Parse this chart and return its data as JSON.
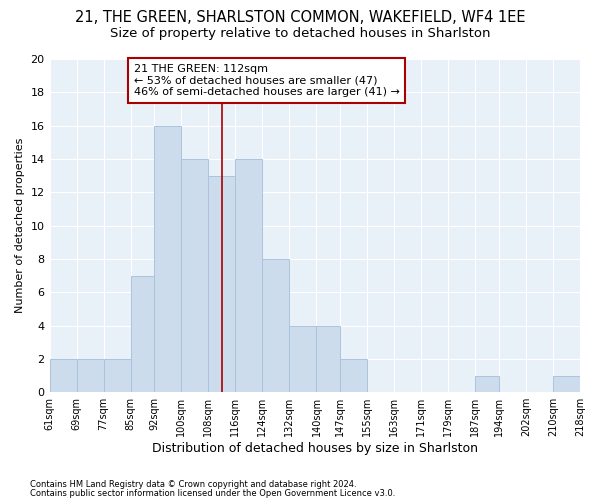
{
  "title": "21, THE GREEN, SHARLSTON COMMON, WAKEFIELD, WF4 1EE",
  "subtitle": "Size of property relative to detached houses in Sharlston",
  "xlabel": "Distribution of detached houses by size in Sharlston",
  "ylabel": "Number of detached properties",
  "footer_line1": "Contains HM Land Registry data © Crown copyright and database right 2024.",
  "footer_line2": "Contains public sector information licensed under the Open Government Licence v3.0.",
  "bin_edges": [
    61,
    69,
    77,
    85,
    92,
    100,
    108,
    116,
    124,
    132,
    140,
    147,
    155,
    163,
    171,
    179,
    187,
    194,
    202,
    210,
    218
  ],
  "bar_heights": [
    2,
    2,
    2,
    7,
    16,
    14,
    13,
    14,
    8,
    4,
    4,
    2,
    0,
    0,
    0,
    0,
    1,
    0,
    0,
    1
  ],
  "bar_facecolor": "#ccdcec",
  "bar_edgecolor": "#aac4dd",
  "subject_value": 112,
  "vline_color": "#aa0000",
  "annotation_text": "21 THE GREEN: 112sqm\n← 53% of detached houses are smaller (47)\n46% of semi-detached houses are larger (41) →",
  "annotation_boxcolor": "white",
  "annotation_edgecolor": "#aa0000",
  "ylim": [
    0,
    20
  ],
  "background_color": "#ffffff",
  "plot_bg_color": "#e8f0f8",
  "grid_color": "#ffffff",
  "title_fontsize": 10.5,
  "subtitle_fontsize": 9.5,
  "xlabel_fontsize": 9,
  "ylabel_fontsize": 8,
  "tick_fontsize": 7,
  "annotation_fontsize": 8,
  "footer_fontsize": 6
}
